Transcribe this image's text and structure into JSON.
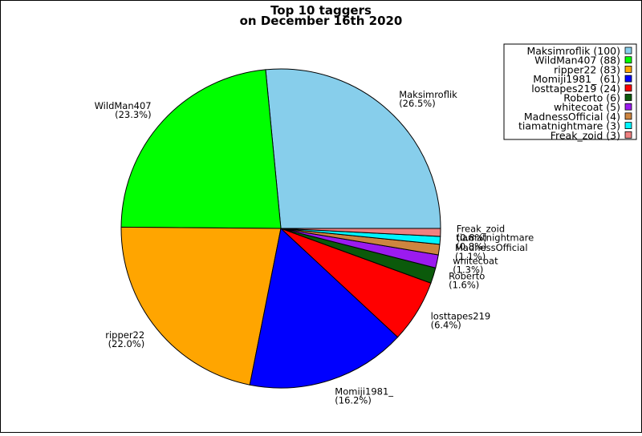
{
  "chart_data": {
    "type": "pie",
    "title": [
      "Top 10 taggers",
      "on December 16th 2020"
    ],
    "start_angle_deg": 0,
    "direction": "counterclockwise",
    "legend_position": "top-right",
    "slices": [
      {
        "name": "Maksimroflik",
        "value": 100,
        "percent": "26.5%",
        "color": "#87CEEB",
        "legend": "Maksimroflik (100)"
      },
      {
        "name": "WildMan407",
        "value": 88,
        "percent": "23.3%",
        "color": "#00FF00",
        "legend": "WildMan407 (88)"
      },
      {
        "name": "ripper22",
        "value": 83,
        "percent": "22.0%",
        "color": "#FFA500",
        "legend": "ripper22 (83)"
      },
      {
        "name": "Momiji1981_",
        "value": 61,
        "percent": "16.2%",
        "color": "#0000FF",
        "legend": "Momiji1981_ (61)"
      },
      {
        "name": "losttapes219",
        "value": 24,
        "percent": "6.4%",
        "color": "#FF0000",
        "legend": "losttapes219 (24)"
      },
      {
        "name": "Roberto",
        "value": 6,
        "percent": "1.6%",
        "color": "#0B5A0B",
        "legend": "Roberto (6)"
      },
      {
        "name": "whitecoat",
        "value": 5,
        "percent": "1.3%",
        "color": "#9B1BEF",
        "legend": "whitecoat (5)"
      },
      {
        "name": "MadnessOfficial",
        "value": 4,
        "percent": "1.1%",
        "color": "#CD853F",
        "legend": "MadnessOfficial (4)"
      },
      {
        "name": "tiamatnightmare",
        "value": 3,
        "percent": "0.8%",
        "color": "#00F5FF",
        "legend": "tiamatnightmare (3)"
      },
      {
        "name": "Freak_zoid",
        "value": 3,
        "percent": "0.8%",
        "color": "#F08080",
        "legend": "Freak_zoid (3)"
      }
    ]
  }
}
